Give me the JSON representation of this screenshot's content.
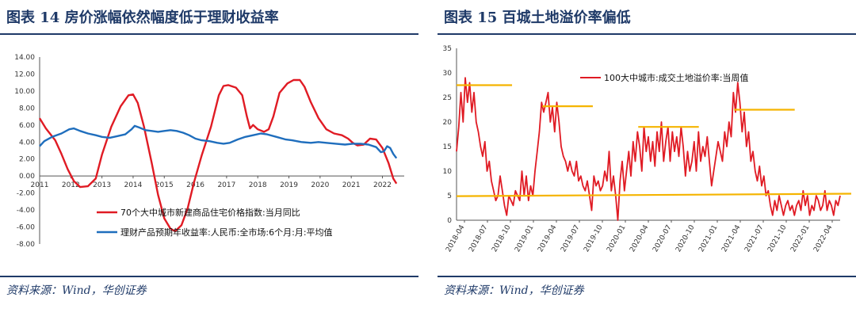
{
  "left": {
    "title": "图表 14   房价涨幅依然幅度低于理财收益率",
    "source": "资料来源：Wind，华创证券"
  },
  "right": {
    "title": "图表 15   百城土地溢价率偏低",
    "source": "资料来源：Wind，华创证券"
  },
  "chart_data": [
    {
      "type": "line",
      "x_ticks": [
        "2011",
        "2012",
        "2013",
        "2014",
        "2015",
        "2016",
        "2017",
        "2018",
        "2019",
        "2020",
        "2021",
        "2022"
      ],
      "ylim": [
        -8,
        14
      ],
      "y_ticks": [
        "14.00",
        "12.00",
        "10.00",
        "8.00",
        "6.00",
        "4.00",
        "2.00",
        "0.00",
        "-2.00",
        "-4.00",
        "-6.00",
        "-8.00"
      ],
      "series": [
        {
          "name": "70个大中城市新建商品住宅价格指数:当月同比",
          "color": "#e01b24",
          "points": [
            [
              2011.0,
              6.8
            ],
            [
              2011.2,
              5.6
            ],
            [
              2011.5,
              4.2
            ],
            [
              2011.7,
              2.6
            ],
            [
              2011.9,
              0.8
            ],
            [
              2012.1,
              -0.6
            ],
            [
              2012.3,
              -1.3
            ],
            [
              2012.55,
              -1.2
            ],
            [
              2012.8,
              -0.3
            ],
            [
              2013.0,
              2.5
            ],
            [
              2013.3,
              5.8
            ],
            [
              2013.6,
              8.2
            ],
            [
              2013.85,
              9.5
            ],
            [
              2014.0,
              9.6
            ],
            [
              2014.15,
              8.6
            ],
            [
              2014.35,
              5.8
            ],
            [
              2014.6,
              1.5
            ],
            [
              2014.8,
              -2.2
            ],
            [
              2015.0,
              -5.0
            ],
            [
              2015.2,
              -6.2
            ],
            [
              2015.35,
              -6.5
            ],
            [
              2015.55,
              -5.8
            ],
            [
              2015.75,
              -3.8
            ],
            [
              2015.95,
              -0.8
            ],
            [
              2016.2,
              2.4
            ],
            [
              2016.5,
              5.8
            ],
            [
              2016.75,
              9.5
            ],
            [
              2016.9,
              10.6
            ],
            [
              2017.05,
              10.7
            ],
            [
              2017.3,
              10.4
            ],
            [
              2017.5,
              9.5
            ],
            [
              2017.65,
              7.0
            ],
            [
              2017.75,
              5.6
            ],
            [
              2017.85,
              6.0
            ],
            [
              2018.0,
              5.5
            ],
            [
              2018.2,
              5.2
            ],
            [
              2018.35,
              5.5
            ],
            [
              2018.5,
              7.0
            ],
            [
              2018.7,
              9.8
            ],
            [
              2018.95,
              10.9
            ],
            [
              2019.15,
              11.3
            ],
            [
              2019.35,
              11.3
            ],
            [
              2019.5,
              10.5
            ],
            [
              2019.7,
              8.7
            ],
            [
              2019.95,
              6.8
            ],
            [
              2020.2,
              5.5
            ],
            [
              2020.45,
              5.0
            ],
            [
              2020.7,
              4.8
            ],
            [
              2020.9,
              4.4
            ],
            [
              2021.05,
              3.9
            ],
            [
              2021.2,
              3.6
            ],
            [
              2021.4,
              3.7
            ],
            [
              2021.6,
              4.4
            ],
            [
              2021.8,
              4.3
            ],
            [
              2022.0,
              3.3
            ],
            [
              2022.2,
              1.5
            ],
            [
              2022.35,
              -0.3
            ],
            [
              2022.45,
              -0.9
            ]
          ]
        },
        {
          "name": "理财产品预期年收益率:人民币:全市场:6个月:月:平均值",
          "color": "#1f6ebd",
          "points": [
            [
              2011.0,
              3.5
            ],
            [
              2011.15,
              4.1
            ],
            [
              2011.4,
              4.6
            ],
            [
              2011.7,
              5.0
            ],
            [
              2011.95,
              5.5
            ],
            [
              2012.1,
              5.6
            ],
            [
              2012.3,
              5.3
            ],
            [
              2012.55,
              5.0
            ],
            [
              2012.8,
              4.8
            ],
            [
              2013.0,
              4.6
            ],
            [
              2013.25,
              4.5
            ],
            [
              2013.5,
              4.7
            ],
            [
              2013.75,
              4.9
            ],
            [
              2013.95,
              5.5
            ],
            [
              2014.05,
              5.9
            ],
            [
              2014.2,
              5.7
            ],
            [
              2014.4,
              5.4
            ],
            [
              2014.6,
              5.3
            ],
            [
              2014.8,
              5.2
            ],
            [
              2015.0,
              5.3
            ],
            [
              2015.2,
              5.4
            ],
            [
              2015.4,
              5.3
            ],
            [
              2015.6,
              5.1
            ],
            [
              2015.8,
              4.8
            ],
            [
              2016.0,
              4.4
            ],
            [
              2016.2,
              4.2
            ],
            [
              2016.45,
              4.1
            ],
            [
              2016.7,
              3.9
            ],
            [
              2016.9,
              3.8
            ],
            [
              2017.1,
              3.9
            ],
            [
              2017.35,
              4.3
            ],
            [
              2017.6,
              4.6
            ],
            [
              2017.85,
              4.8
            ],
            [
              2018.1,
              5.0
            ],
            [
              2018.3,
              4.9
            ],
            [
              2018.6,
              4.6
            ],
            [
              2018.9,
              4.3
            ],
            [
              2019.1,
              4.2
            ],
            [
              2019.4,
              4.0
            ],
            [
              2019.7,
              3.9
            ],
            [
              2019.95,
              4.0
            ],
            [
              2020.2,
              3.9
            ],
            [
              2020.5,
              3.8
            ],
            [
              2020.8,
              3.7
            ],
            [
              2021.05,
              3.8
            ],
            [
              2021.3,
              3.8
            ],
            [
              2021.55,
              3.7
            ],
            [
              2021.8,
              3.4
            ],
            [
              2021.95,
              2.8
            ],
            [
              2022.05,
              2.9
            ],
            [
              2022.15,
              3.5
            ],
            [
              2022.25,
              3.3
            ],
            [
              2022.35,
              2.6
            ],
            [
              2022.45,
              2.1
            ]
          ]
        }
      ]
    },
    {
      "type": "line",
      "x_ticks": [
        "2018-04",
        "2018-07",
        "2018-10",
        "2019-01",
        "2019-04",
        "2019-07",
        "2019-10",
        "2020-01",
        "2020-04",
        "2020-07",
        "2020-10",
        "2021-01",
        "2021-04",
        "2021-07",
        "2021-10",
        "2022-01",
        "2022-04"
      ],
      "ylim": [
        0,
        35
      ],
      "y_ticks": [
        "35",
        "30",
        "25",
        "20",
        "15",
        "10",
        "5",
        "0"
      ],
      "series": [
        {
          "name": "100大中城市:成交土地溢价率:当周值",
          "color": "#e01b24",
          "values": [
            14,
            19,
            26,
            20,
            29,
            24,
            28,
            22,
            26,
            20,
            18,
            15,
            13,
            16,
            10,
            12,
            8,
            6,
            4,
            5,
            9,
            6,
            3,
            1,
            5,
            4,
            3,
            6,
            5,
            4,
            10,
            5,
            9,
            4,
            7,
            5,
            10,
            14,
            18,
            24,
            22,
            24,
            26,
            20,
            23,
            18,
            24,
            20,
            15,
            13,
            12,
            10,
            12,
            10,
            9,
            12,
            8,
            9,
            7,
            6,
            8,
            5,
            2,
            9,
            7,
            8,
            6,
            7,
            10,
            8,
            14,
            6,
            9,
            5,
            0,
            8,
            12,
            6,
            10,
            14,
            9,
            16,
            12,
            18,
            15,
            10,
            19,
            14,
            17,
            12,
            16,
            11,
            18,
            14,
            20,
            12,
            16,
            19,
            12,
            18,
            14,
            17,
            13,
            19,
            15,
            9,
            14,
            10,
            12,
            16,
            10,
            18,
            12,
            15,
            13,
            17,
            12,
            7,
            10,
            13,
            16,
            14,
            12,
            18,
            15,
            20,
            17,
            26,
            22,
            28,
            24,
            18,
            22,
            15,
            18,
            12,
            14,
            10,
            8,
            11,
            7,
            9,
            5,
            6,
            3,
            1,
            4,
            2,
            5,
            3,
            1,
            3,
            4,
            2,
            3,
            1,
            3,
            4,
            2,
            6,
            3,
            5,
            1,
            3,
            2,
            5,
            4,
            2,
            3,
            6,
            2,
            4,
            3,
            1,
            4,
            3,
            5
          ]
        },
        {
          "name": "",
          "color": "#f5b400",
          "kind": "reference-lines",
          "segments": [
            {
              "from": 0,
              "to": 11,
              "value": 27.5
            },
            {
              "from": 17,
              "to": 27,
              "value": 23.2
            },
            {
              "from": 36,
              "to": 48,
              "value": 19.0
            },
            {
              "from": 55,
              "to": 67,
              "value": 22.5
            },
            {
              "from": 0,
              "to": 76,
              "value": 4.9,
              "to_y": 5.4
            }
          ]
        }
      ]
    }
  ]
}
